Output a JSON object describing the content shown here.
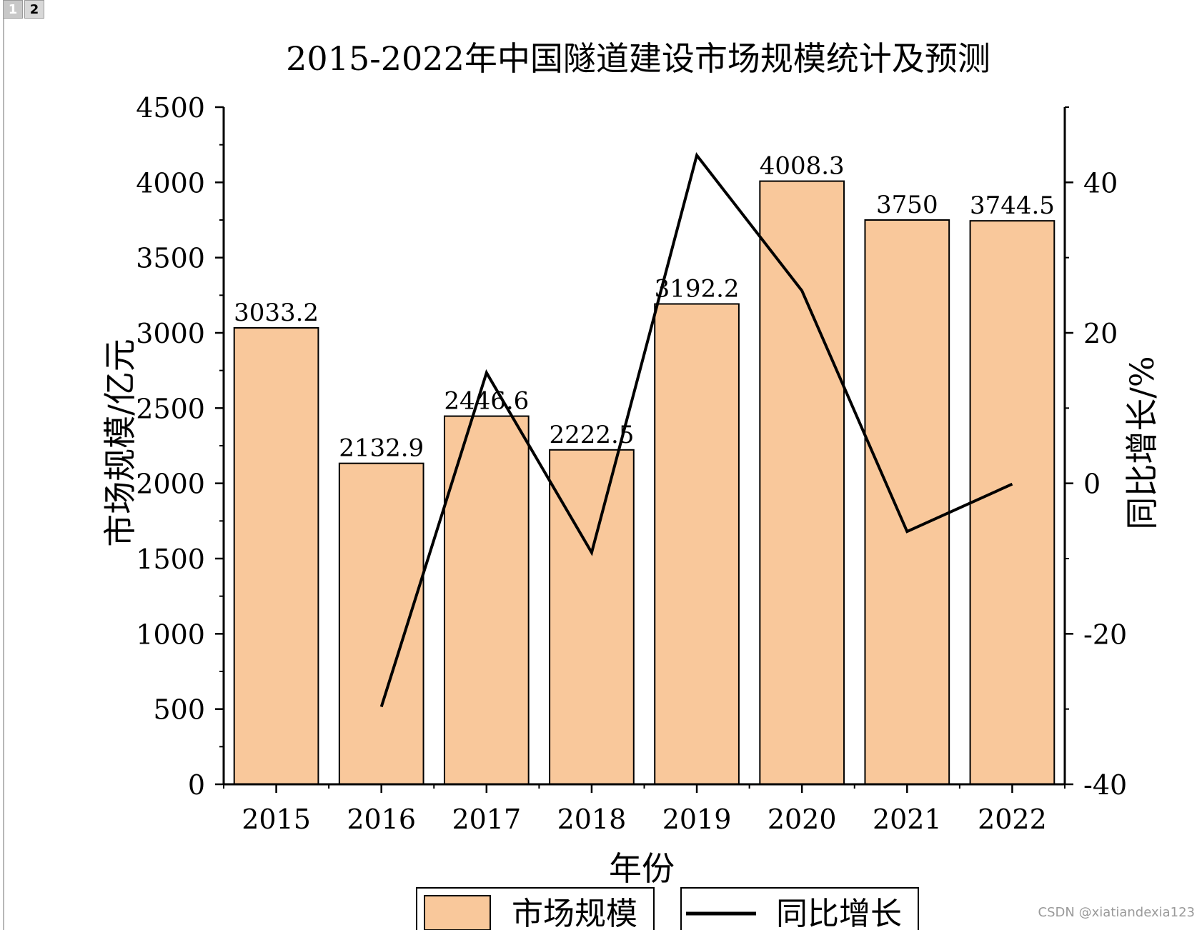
{
  "tabs": [
    {
      "label": "1",
      "active": false
    },
    {
      "label": "2",
      "active": true
    }
  ],
  "watermark": "CSDN @xiatiandexia123",
  "colors": {
    "bar_fill": "#f9c89b",
    "bar_stroke": "#000000",
    "line": "#000000",
    "axis": "#000000"
  },
  "chart_data": {
    "type": "bar",
    "title": "2015-2022年中国隧道建设市场规模统计及预测",
    "xlabel": "年份",
    "ylabel": "市场规模/亿元",
    "y2label": "同比增长/%",
    "categories": [
      "2015",
      "2016",
      "2017",
      "2018",
      "2019",
      "2020",
      "2021",
      "2022"
    ],
    "ylim": [
      0,
      4500
    ],
    "yticks": [
      "0",
      "500",
      "1000",
      "1500",
      "2000",
      "2500",
      "3000",
      "3500",
      "4000",
      "4500"
    ],
    "y2lim": [
      -40,
      50
    ],
    "y2ticks": [
      "-40",
      "-20",
      "0",
      "20",
      "40"
    ],
    "series": [
      {
        "name": "市场规模",
        "type": "bar",
        "axis": "left",
        "values": [
          3033.2,
          2132.9,
          2446.6,
          2222.5,
          3192.2,
          4008.3,
          3750,
          3744.5
        ],
        "labels": [
          "3033.2",
          "2132.9",
          "2446.6",
          "2222.5",
          "3192.2",
          "4008.3",
          "3750",
          "3744.5"
        ]
      },
      {
        "name": "同比增长",
        "type": "line",
        "axis": "right",
        "values": [
          null,
          -29.7,
          14.7,
          -9.2,
          43.6,
          25.6,
          -6.4,
          -0.1
        ]
      }
    ],
    "legend": [
      "市场规模",
      "同比增长"
    ],
    "legend_position": "bottom"
  }
}
